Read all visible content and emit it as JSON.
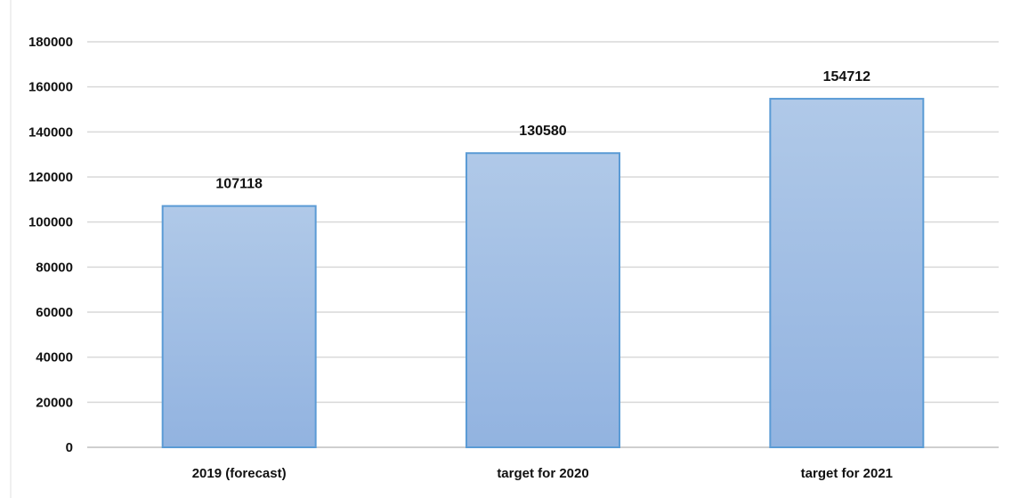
{
  "chart_data": {
    "type": "bar",
    "categories": [
      "2019 (forecast)",
      "target for 2020",
      "target for 2021"
    ],
    "values": [
      107118,
      130580,
      154712
    ],
    "data_labels": [
      "107118",
      "130580",
      "154712"
    ],
    "title": "",
    "xlabel": "",
    "ylabel": "",
    "ylim": [
      0,
      180000
    ],
    "yticks": [
      0,
      20000,
      40000,
      60000,
      80000,
      100000,
      120000,
      140000,
      160000,
      180000
    ],
    "ytick_labels": [
      "0",
      "20000",
      "40000",
      "60000",
      "80000",
      "100000",
      "120000",
      "140000",
      "160000",
      "180000"
    ],
    "grid": true,
    "legend": "none"
  },
  "colors": {
    "bar_fill_top": "#b0c9e8",
    "bar_fill_bottom": "#92b3e0",
    "bar_stroke": "#5b9bd5",
    "grid": "#d9d9d9",
    "axis": "#bfbfbf",
    "text": "#111111"
  }
}
